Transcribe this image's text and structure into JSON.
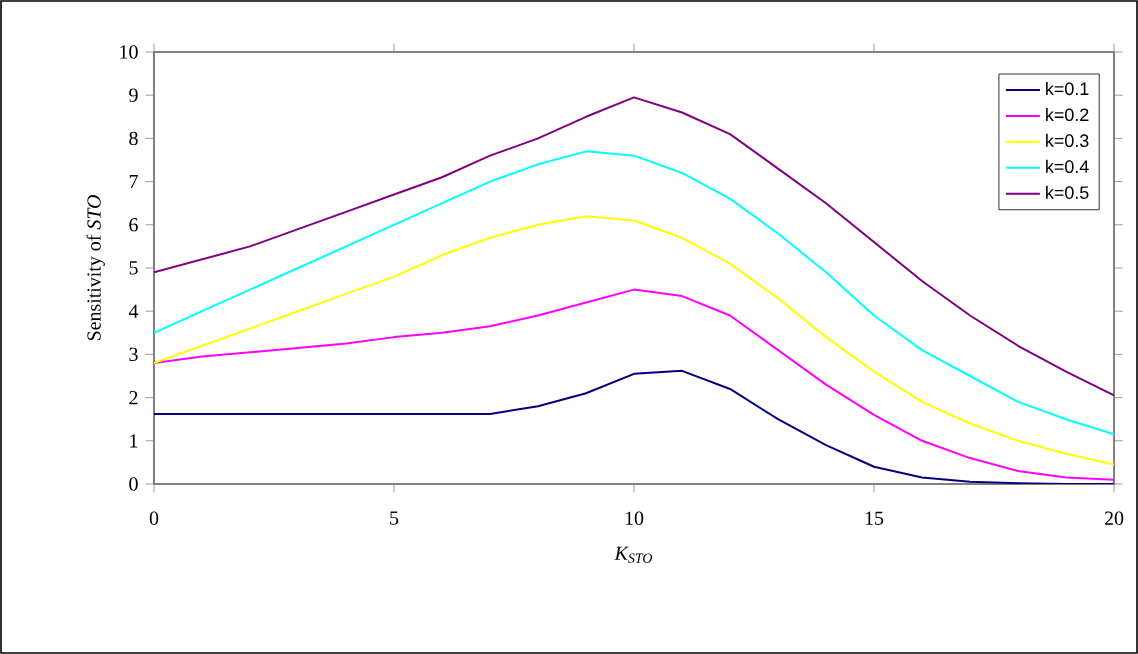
{
  "chart_data": {
    "type": "line",
    "xlabel": "K$_{STO}$",
    "ylabel": "Sensitivity of *STO*",
    "x": [
      0,
      1,
      2,
      3,
      4,
      5,
      6,
      7,
      8,
      9,
      10,
      11,
      12,
      13,
      14,
      15,
      16,
      17,
      18,
      19,
      20
    ],
    "xlim": [
      0,
      20
    ],
    "xticks": [
      0,
      5,
      10,
      15,
      20
    ],
    "ylim": [
      0,
      10
    ],
    "yticks": [
      0,
      1,
      2,
      3,
      4,
      5,
      6,
      7,
      8,
      9,
      10
    ],
    "grid": false,
    "legend": "top right",
    "marker": "none",
    "line_style": "solid",
    "series": [
      {
        "name": "k=0.1",
        "color": "#000080",
        "values": [
          1.62,
          1.62,
          1.62,
          1.62,
          1.62,
          1.62,
          1.62,
          1.62,
          1.8,
          2.1,
          2.55,
          2.62,
          2.2,
          1.5,
          0.9,
          0.4,
          0.15,
          0.05,
          0.02,
          0,
          0
        ]
      },
      {
        "name": "k=0.2",
        "color": "#ff00ff",
        "values": [
          2.8,
          2.95,
          3.05,
          3.15,
          3.25,
          3.4,
          3.5,
          3.65,
          3.9,
          4.2,
          4.5,
          4.35,
          3.9,
          3.1,
          2.3,
          1.6,
          1.0,
          0.6,
          0.3,
          0.15,
          0.1
        ]
      },
      {
        "name": "k=0.3",
        "color": "#ffff00",
        "values": [
          2.8,
          3.2,
          3.6,
          4.0,
          4.4,
          4.8,
          5.3,
          5.7,
          6.0,
          6.2,
          6.1,
          5.7,
          5.1,
          4.3,
          3.4,
          2.6,
          1.9,
          1.4,
          1.0,
          0.7,
          0.45
        ]
      },
      {
        "name": "k=0.4",
        "color": "#00ffff",
        "values": [
          3.5,
          4.0,
          4.5,
          5.0,
          5.5,
          6.0,
          6.5,
          7.0,
          7.4,
          7.7,
          7.6,
          7.2,
          6.6,
          5.8,
          4.9,
          3.9,
          3.1,
          2.5,
          1.9,
          1.5,
          1.15
        ]
      },
      {
        "name": "k=0.5",
        "color": "#800080",
        "values": [
          4.9,
          5.2,
          5.5,
          5.9,
          6.3,
          6.7,
          7.1,
          7.6,
          8.0,
          8.5,
          8.95,
          8.6,
          8.1,
          7.3,
          6.5,
          5.6,
          4.7,
          3.9,
          3.2,
          2.6,
          2.05
        ]
      }
    ]
  }
}
